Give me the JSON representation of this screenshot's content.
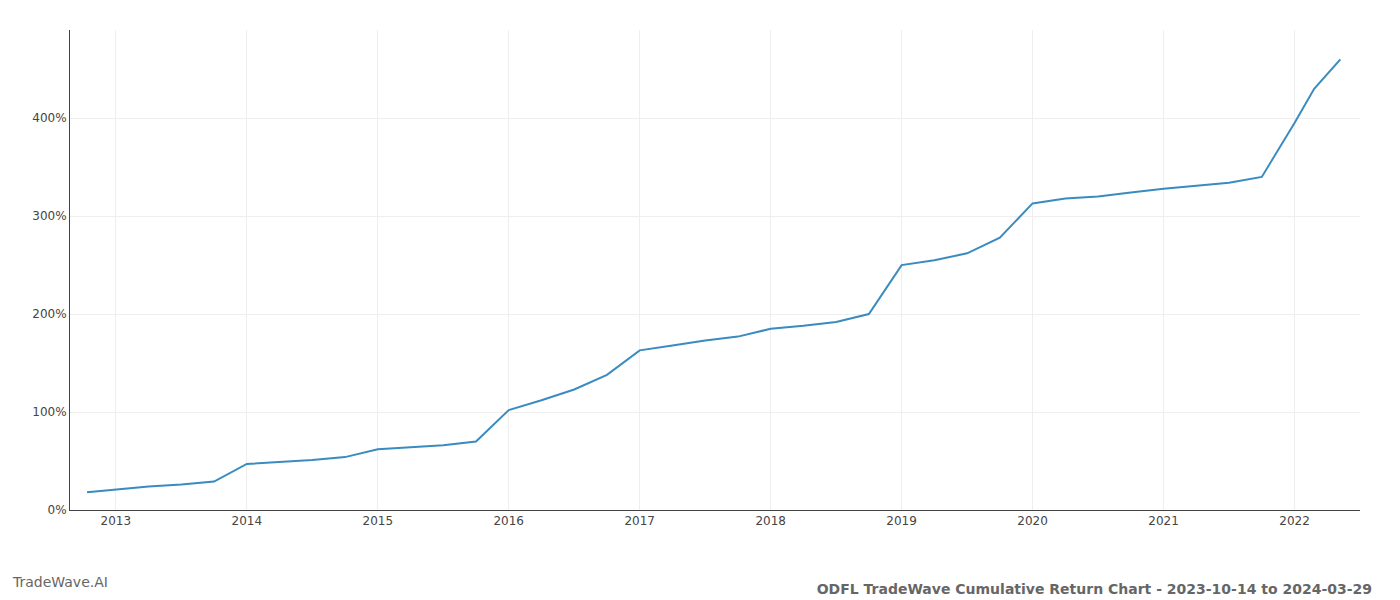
{
  "chart_data": {
    "type": "line",
    "title": "ODFL TradeWave Cumulative Return Chart - 2023-10-14 to 2024-03-29",
    "annotations": [
      "TradeWave.AI"
    ],
    "x": [
      2012.78,
      2013.0,
      2013.25,
      2013.5,
      2013.75,
      2014.0,
      2014.25,
      2014.5,
      2014.75,
      2015.0,
      2015.25,
      2015.5,
      2015.75,
      2016.0,
      2016.25,
      2016.5,
      2016.75,
      2017.0,
      2017.25,
      2017.5,
      2017.75,
      2018.0,
      2018.25,
      2018.5,
      2018.75,
      2019.0,
      2019.25,
      2019.5,
      2019.75,
      2020.0,
      2020.25,
      2020.5,
      2020.75,
      2021.0,
      2021.25,
      2021.5,
      2021.75,
      2022.0,
      2022.15,
      2022.35
    ],
    "values": [
      18,
      21,
      24,
      26,
      29,
      47,
      49,
      51,
      54,
      62,
      64,
      66,
      70,
      102,
      112,
      123,
      138,
      163,
      168,
      173,
      177,
      185,
      188,
      192,
      200,
      250,
      255,
      262,
      278,
      313,
      318,
      320,
      324,
      328,
      331,
      334,
      340,
      395,
      430,
      460
    ],
    "color": "#3a8bbf",
    "xlim": [
      2012.65,
      2022.5
    ],
    "xticks": [
      2013,
      2014,
      2015,
      2016,
      2017,
      2018,
      2019,
      2020,
      2021,
      2022
    ],
    "ylim": [
      0,
      490
    ],
    "yticks": [
      {
        "value": 0,
        "label": "0%"
      },
      {
        "value": 100,
        "label": "100%"
      },
      {
        "value": 200,
        "label": "200%"
      },
      {
        "value": 300,
        "label": "300%"
      },
      {
        "value": 400,
        "label": "400%"
      }
    ],
    "grid": true
  }
}
